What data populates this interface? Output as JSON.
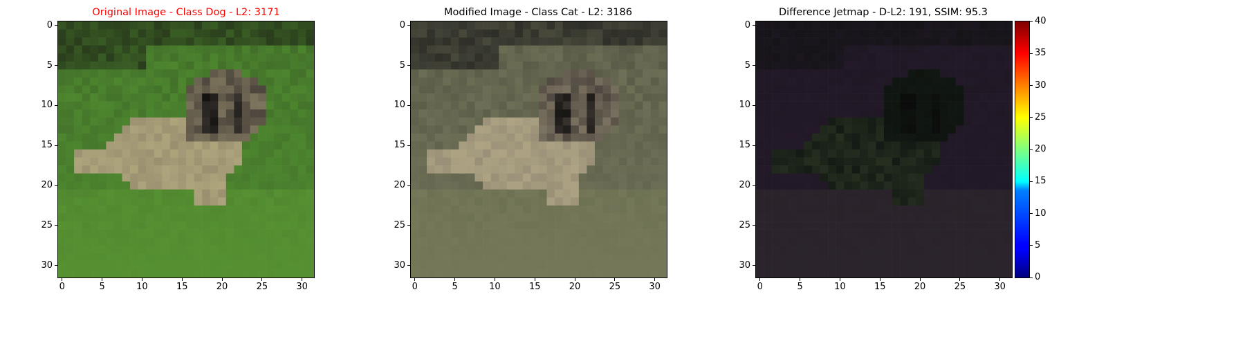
{
  "chart_data": [
    {
      "type": "heatmap",
      "title": "Original Image - Class Dog - L2: 3171",
      "title_color": "#ff0000",
      "image_size": [
        32,
        32
      ],
      "xticks": [
        0,
        5,
        10,
        15,
        20,
        25,
        30
      ],
      "yticks": [
        0,
        5,
        10,
        15,
        20,
        25,
        30
      ],
      "xlim": [
        -0.5,
        31.5
      ],
      "ylim": [
        31.5,
        -0.5
      ],
      "palette": {
        "background": "#4f8a30",
        "background_dark": "#2a3d1c",
        "dog_body": "#9a9070",
        "dog_face_dark": "#3a3430"
      }
    },
    {
      "type": "heatmap",
      "title": "Modified Image - Class Cat - L2: 3186",
      "title_color": "#000000",
      "image_size": [
        32,
        32
      ],
      "xticks": [
        0,
        5,
        10,
        15,
        20,
        25,
        30
      ],
      "yticks": [
        0,
        5,
        10,
        15,
        20,
        25,
        30
      ],
      "xlim": [
        -0.5,
        31.5
      ],
      "ylim": [
        31.5,
        -0.5
      ],
      "palette": {
        "background": "#707258",
        "background_dark": "#2e2e28",
        "dog_body": "#9a9078",
        "dog_face_dark": "#3a3430"
      }
    },
    {
      "type": "heatmap",
      "title": "Difference Jetmap - D-L2: 191, SSIM: 95.3",
      "title_color": "#000000",
      "image_size": [
        32,
        32
      ],
      "xticks": [
        0,
        5,
        10,
        15,
        20,
        25,
        30
      ],
      "yticks": [
        0,
        5,
        10,
        15,
        20,
        25,
        30
      ],
      "xlim": [
        -0.5,
        31.5
      ],
      "ylim": [
        31.5,
        -0.5
      ],
      "palette": {
        "background": "#241a2a",
        "background_dark": "#161418",
        "dog_body": "#121a14",
        "dog_face_dark": "#0e120e"
      },
      "colorbar": {
        "colormap": "jet",
        "range": [
          0,
          40
        ],
        "ticks": [
          0,
          5,
          10,
          15,
          20,
          25,
          30,
          35,
          40
        ]
      }
    }
  ]
}
